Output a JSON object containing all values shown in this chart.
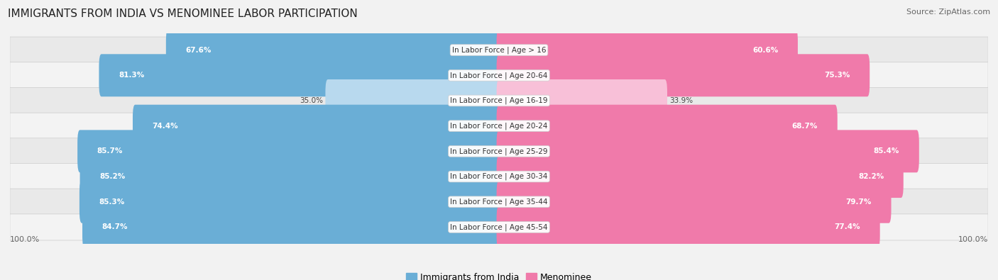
{
  "title": "IMMIGRANTS FROM INDIA VS MENOMINEE LABOR PARTICIPATION",
  "source": "Source: ZipAtlas.com",
  "categories": [
    "In Labor Force | Age > 16",
    "In Labor Force | Age 20-64",
    "In Labor Force | Age 16-19",
    "In Labor Force | Age 20-24",
    "In Labor Force | Age 25-29",
    "In Labor Force | Age 30-34",
    "In Labor Force | Age 35-44",
    "In Labor Force | Age 45-54"
  ],
  "india_values": [
    67.6,
    81.3,
    35.0,
    74.4,
    85.7,
    85.2,
    85.3,
    84.7
  ],
  "menominee_values": [
    60.6,
    75.3,
    33.9,
    68.7,
    85.4,
    82.2,
    79.7,
    77.4
  ],
  "india_color": "#6aaed6",
  "india_color_light": "#b8d9ee",
  "menominee_color": "#f07aaa",
  "menominee_color_light": "#f8c0d8",
  "bar_height": 0.68,
  "background_color": "#f2f2f2",
  "row_bg_color": "#e8e8e8",
  "row_bg_color2": "#f0f0f0",
  "max_value": 100.0,
  "legend_labels": [
    "Immigrants from India",
    "Menominee"
  ],
  "title_fontsize": 11,
  "source_fontsize": 8,
  "label_fontsize": 8,
  "category_fontsize": 7.5,
  "value_fontsize": 7.5
}
